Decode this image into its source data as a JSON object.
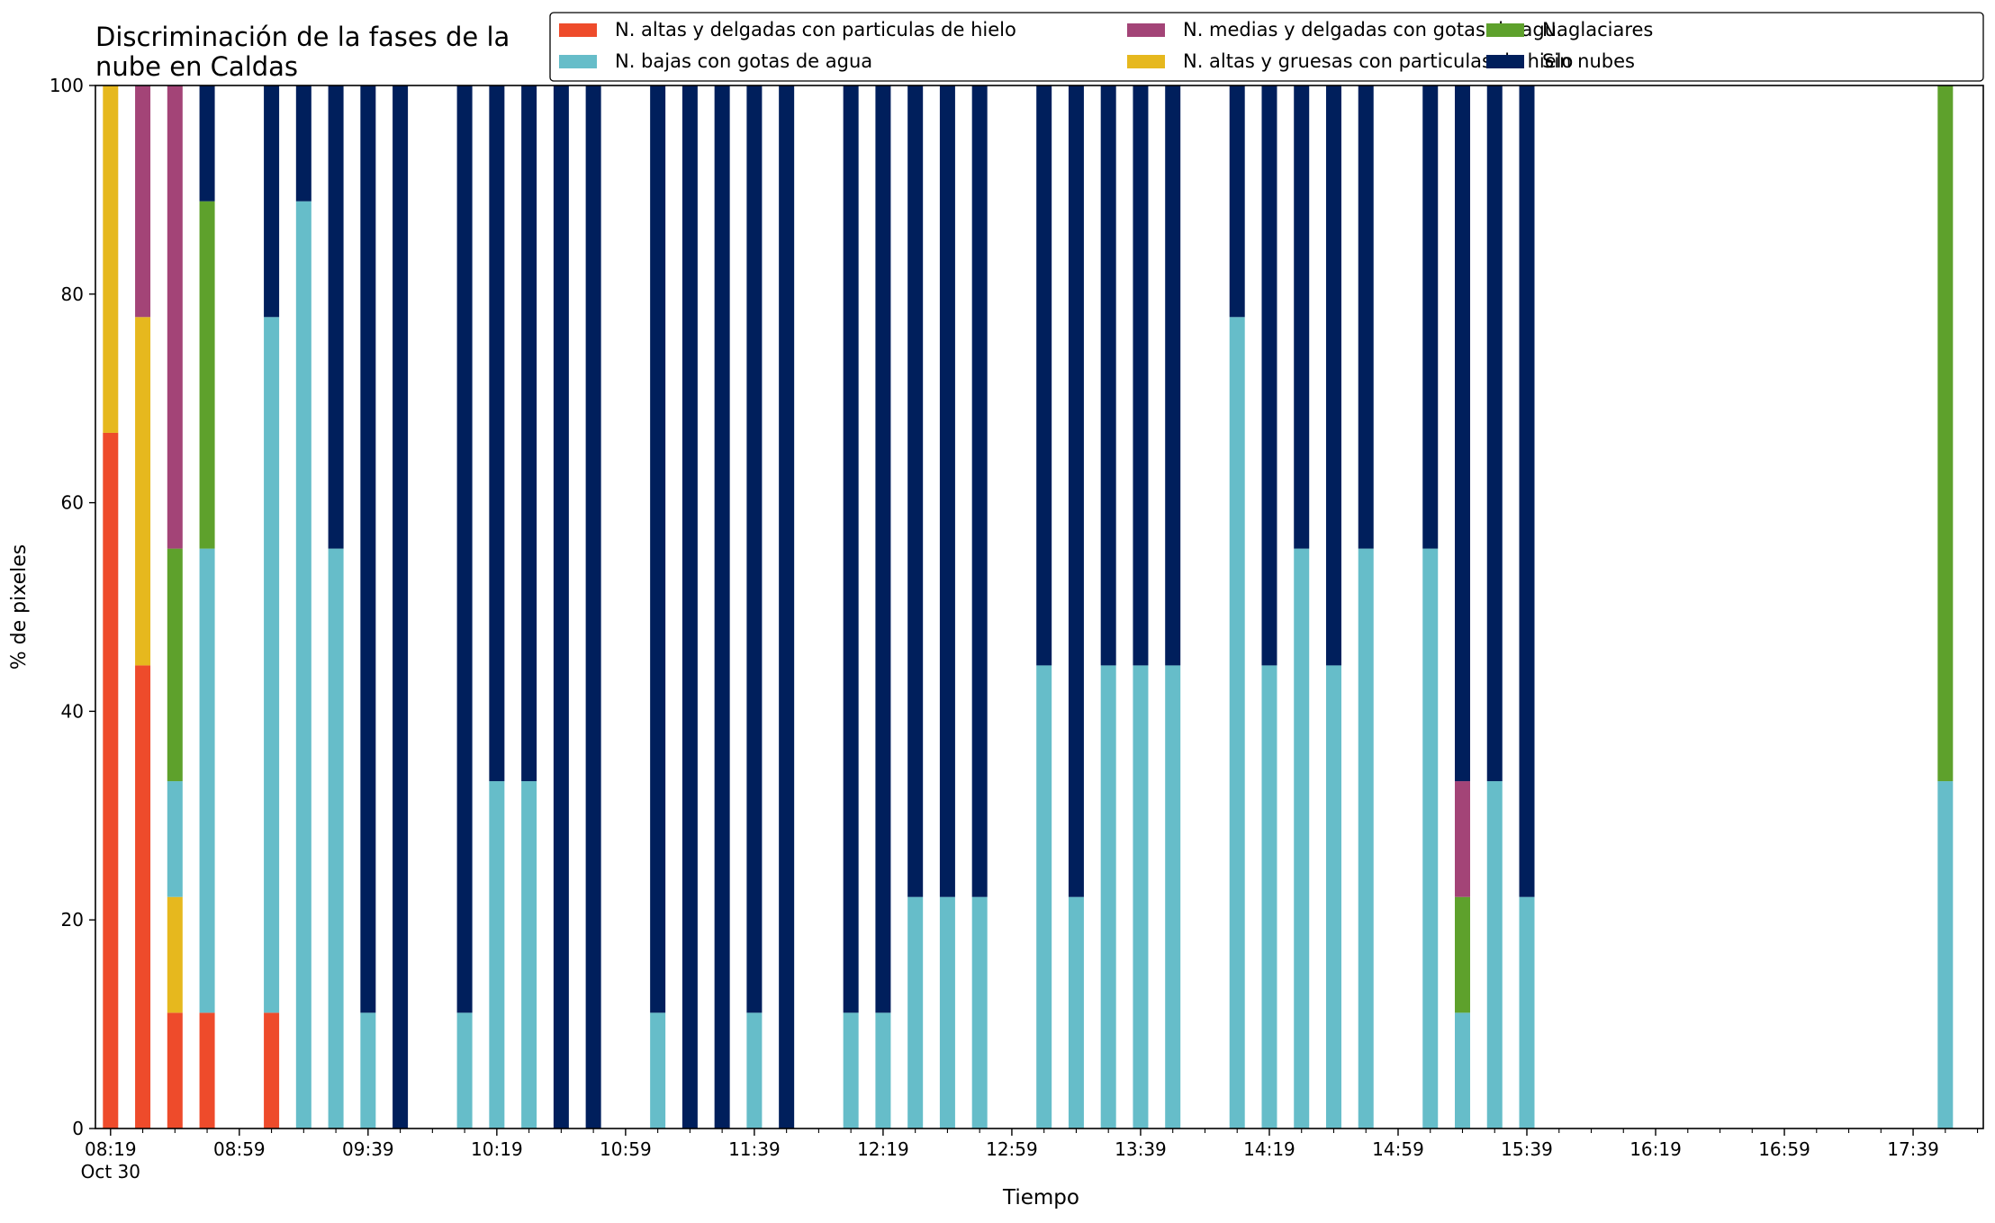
{
  "chart_data": {
    "type": "bar",
    "stacked": true,
    "title_lines": [
      "Discriminación de la fases de la",
      "nube en Caldas"
    ],
    "xlabel": "Tiempo",
    "ylabel": "% de pixeles",
    "ylim": [
      0,
      100
    ],
    "yticks": [
      0,
      20,
      40,
      60,
      80,
      100
    ],
    "grid": false,
    "legend_position": "top-right",
    "x_start_time": "08:19",
    "x_end_time": "17:59",
    "x_step_minutes": 10,
    "xtick_labels": [
      {
        "time": "08:19",
        "label": "08:19",
        "sublabel": "Oct 30"
      },
      {
        "time": "08:59",
        "label": "08:59"
      },
      {
        "time": "09:39",
        "label": "09:39"
      },
      {
        "time": "10:19",
        "label": "10:19"
      },
      {
        "time": "10:59",
        "label": "10:59"
      },
      {
        "time": "11:39",
        "label": "11:39"
      },
      {
        "time": "12:19",
        "label": "12:19"
      },
      {
        "time": "12:59",
        "label": "12:59"
      },
      {
        "time": "13:39",
        "label": "13:39"
      },
      {
        "time": "14:19",
        "label": "14:19"
      },
      {
        "time": "14:59",
        "label": "14:59"
      },
      {
        "time": "15:39",
        "label": "15:39"
      },
      {
        "time": "16:19",
        "label": "16:19"
      },
      {
        "time": "16:59",
        "label": "16:59"
      },
      {
        "time": "17:39",
        "label": "17:39"
      }
    ],
    "series": [
      {
        "name": "N. altas y delgadas con particulas de hielo",
        "color": "#ee4b2b"
      },
      {
        "name": "N. altas y gruesas con particulas de hielo",
        "color": "#e6b81e"
      },
      {
        "name": "N. bajas con gotas de agua",
        "color": "#66bdc9"
      },
      {
        "name": "N. glaciares",
        "color": "#5ea12c"
      },
      {
        "name": "N. medias y delgadas con gotas de agua",
        "color": "#a34477"
      },
      {
        "name": "Sin nubes",
        "color": "#001f5c"
      }
    ],
    "legend_order": [
      0,
      2,
      4,
      1,
      3,
      5
    ],
    "stack_order": [
      0,
      1,
      2,
      3,
      4,
      5
    ],
    "bars": [
      {
        "time": "08:19",
        "values": [
          66.7,
          33.3,
          0,
          0,
          0,
          0
        ]
      },
      {
        "time": "08:29",
        "values": [
          44.4,
          33.4,
          0,
          0,
          22.2,
          0
        ]
      },
      {
        "time": "08:39",
        "values": [
          11.1,
          11.1,
          11.1,
          22.3,
          44.4,
          0
        ]
      },
      {
        "time": "08:49",
        "values": [
          11.1,
          0,
          44.5,
          33.3,
          0,
          11.1
        ]
      },
      {
        "time": "09:09",
        "values": [
          11.1,
          0,
          66.7,
          0,
          0,
          22.2
        ]
      },
      {
        "time": "09:19",
        "values": [
          0,
          0,
          88.9,
          0,
          0,
          11.1
        ]
      },
      {
        "time": "09:29",
        "values": [
          0,
          0,
          55.6,
          0,
          0,
          44.4
        ]
      },
      {
        "time": "09:39",
        "values": [
          0,
          0,
          11.1,
          0,
          0,
          88.9
        ]
      },
      {
        "time": "09:49",
        "values": [
          0,
          0,
          0,
          0,
          0,
          100
        ]
      },
      {
        "time": "10:09",
        "values": [
          0,
          0,
          11.1,
          0,
          0,
          88.9
        ]
      },
      {
        "time": "10:19",
        "values": [
          0,
          0,
          33.3,
          0,
          0,
          66.7
        ]
      },
      {
        "time": "10:29",
        "values": [
          0,
          0,
          33.3,
          0,
          0,
          66.7
        ]
      },
      {
        "time": "10:39",
        "values": [
          0,
          0,
          0,
          0,
          0,
          100
        ]
      },
      {
        "time": "10:49",
        "values": [
          0,
          0,
          0,
          0,
          0,
          100
        ]
      },
      {
        "time": "11:09",
        "values": [
          0,
          0,
          11.1,
          0,
          0,
          88.9
        ]
      },
      {
        "time": "11:19",
        "values": [
          0,
          0,
          0,
          0,
          0,
          100
        ]
      },
      {
        "time": "11:29",
        "values": [
          0,
          0,
          0,
          0,
          0,
          100
        ]
      },
      {
        "time": "11:39",
        "values": [
          0,
          0,
          11.1,
          0,
          0,
          88.9
        ]
      },
      {
        "time": "11:49",
        "values": [
          0,
          0,
          0,
          0,
          0,
          100
        ]
      },
      {
        "time": "12:09",
        "values": [
          0,
          0,
          11.1,
          0,
          0,
          88.9
        ]
      },
      {
        "time": "12:19",
        "values": [
          0,
          0,
          11.1,
          0,
          0,
          88.9
        ]
      },
      {
        "time": "12:29",
        "values": [
          0,
          0,
          22.2,
          0,
          0,
          77.8
        ]
      },
      {
        "time": "12:39",
        "values": [
          0,
          0,
          22.2,
          0,
          0,
          77.8
        ]
      },
      {
        "time": "12:49",
        "values": [
          0,
          0,
          22.2,
          0,
          0,
          77.8
        ]
      },
      {
        "time": "13:09",
        "values": [
          0,
          0,
          44.4,
          0,
          0,
          55.6
        ]
      },
      {
        "time": "13:19",
        "values": [
          0,
          0,
          22.2,
          0,
          0,
          77.8
        ]
      },
      {
        "time": "13:29",
        "values": [
          0,
          0,
          44.4,
          0,
          0,
          55.6
        ]
      },
      {
        "time": "13:39",
        "values": [
          0,
          0,
          44.4,
          0,
          0,
          55.6
        ]
      },
      {
        "time": "13:49",
        "values": [
          0,
          0,
          44.4,
          0,
          0,
          55.6
        ]
      },
      {
        "time": "14:09",
        "values": [
          0,
          0,
          77.8,
          0,
          0,
          22.2
        ]
      },
      {
        "time": "14:19",
        "values": [
          0,
          0,
          44.4,
          0,
          0,
          55.6
        ]
      },
      {
        "time": "14:29",
        "values": [
          0,
          0,
          55.6,
          0,
          0,
          44.4
        ]
      },
      {
        "time": "14:39",
        "values": [
          0,
          0,
          44.4,
          0,
          0,
          55.6
        ]
      },
      {
        "time": "14:49",
        "values": [
          0,
          0,
          55.6,
          0,
          0,
          44.4
        ]
      },
      {
        "time": "15:09",
        "values": [
          0,
          0,
          55.6,
          0,
          0,
          44.4
        ]
      },
      {
        "time": "15:19",
        "values": [
          0,
          0,
          11.1,
          11.1,
          11.1,
          66.7
        ]
      },
      {
        "time": "15:29",
        "values": [
          0,
          0,
          33.3,
          0,
          0,
          66.7
        ]
      },
      {
        "time": "15:39",
        "values": [
          0,
          0,
          22.2,
          0,
          0,
          77.8
        ]
      },
      {
        "time": "17:49",
        "values": [
          0,
          0,
          33.3,
          66.7,
          0,
          0
        ]
      }
    ]
  }
}
